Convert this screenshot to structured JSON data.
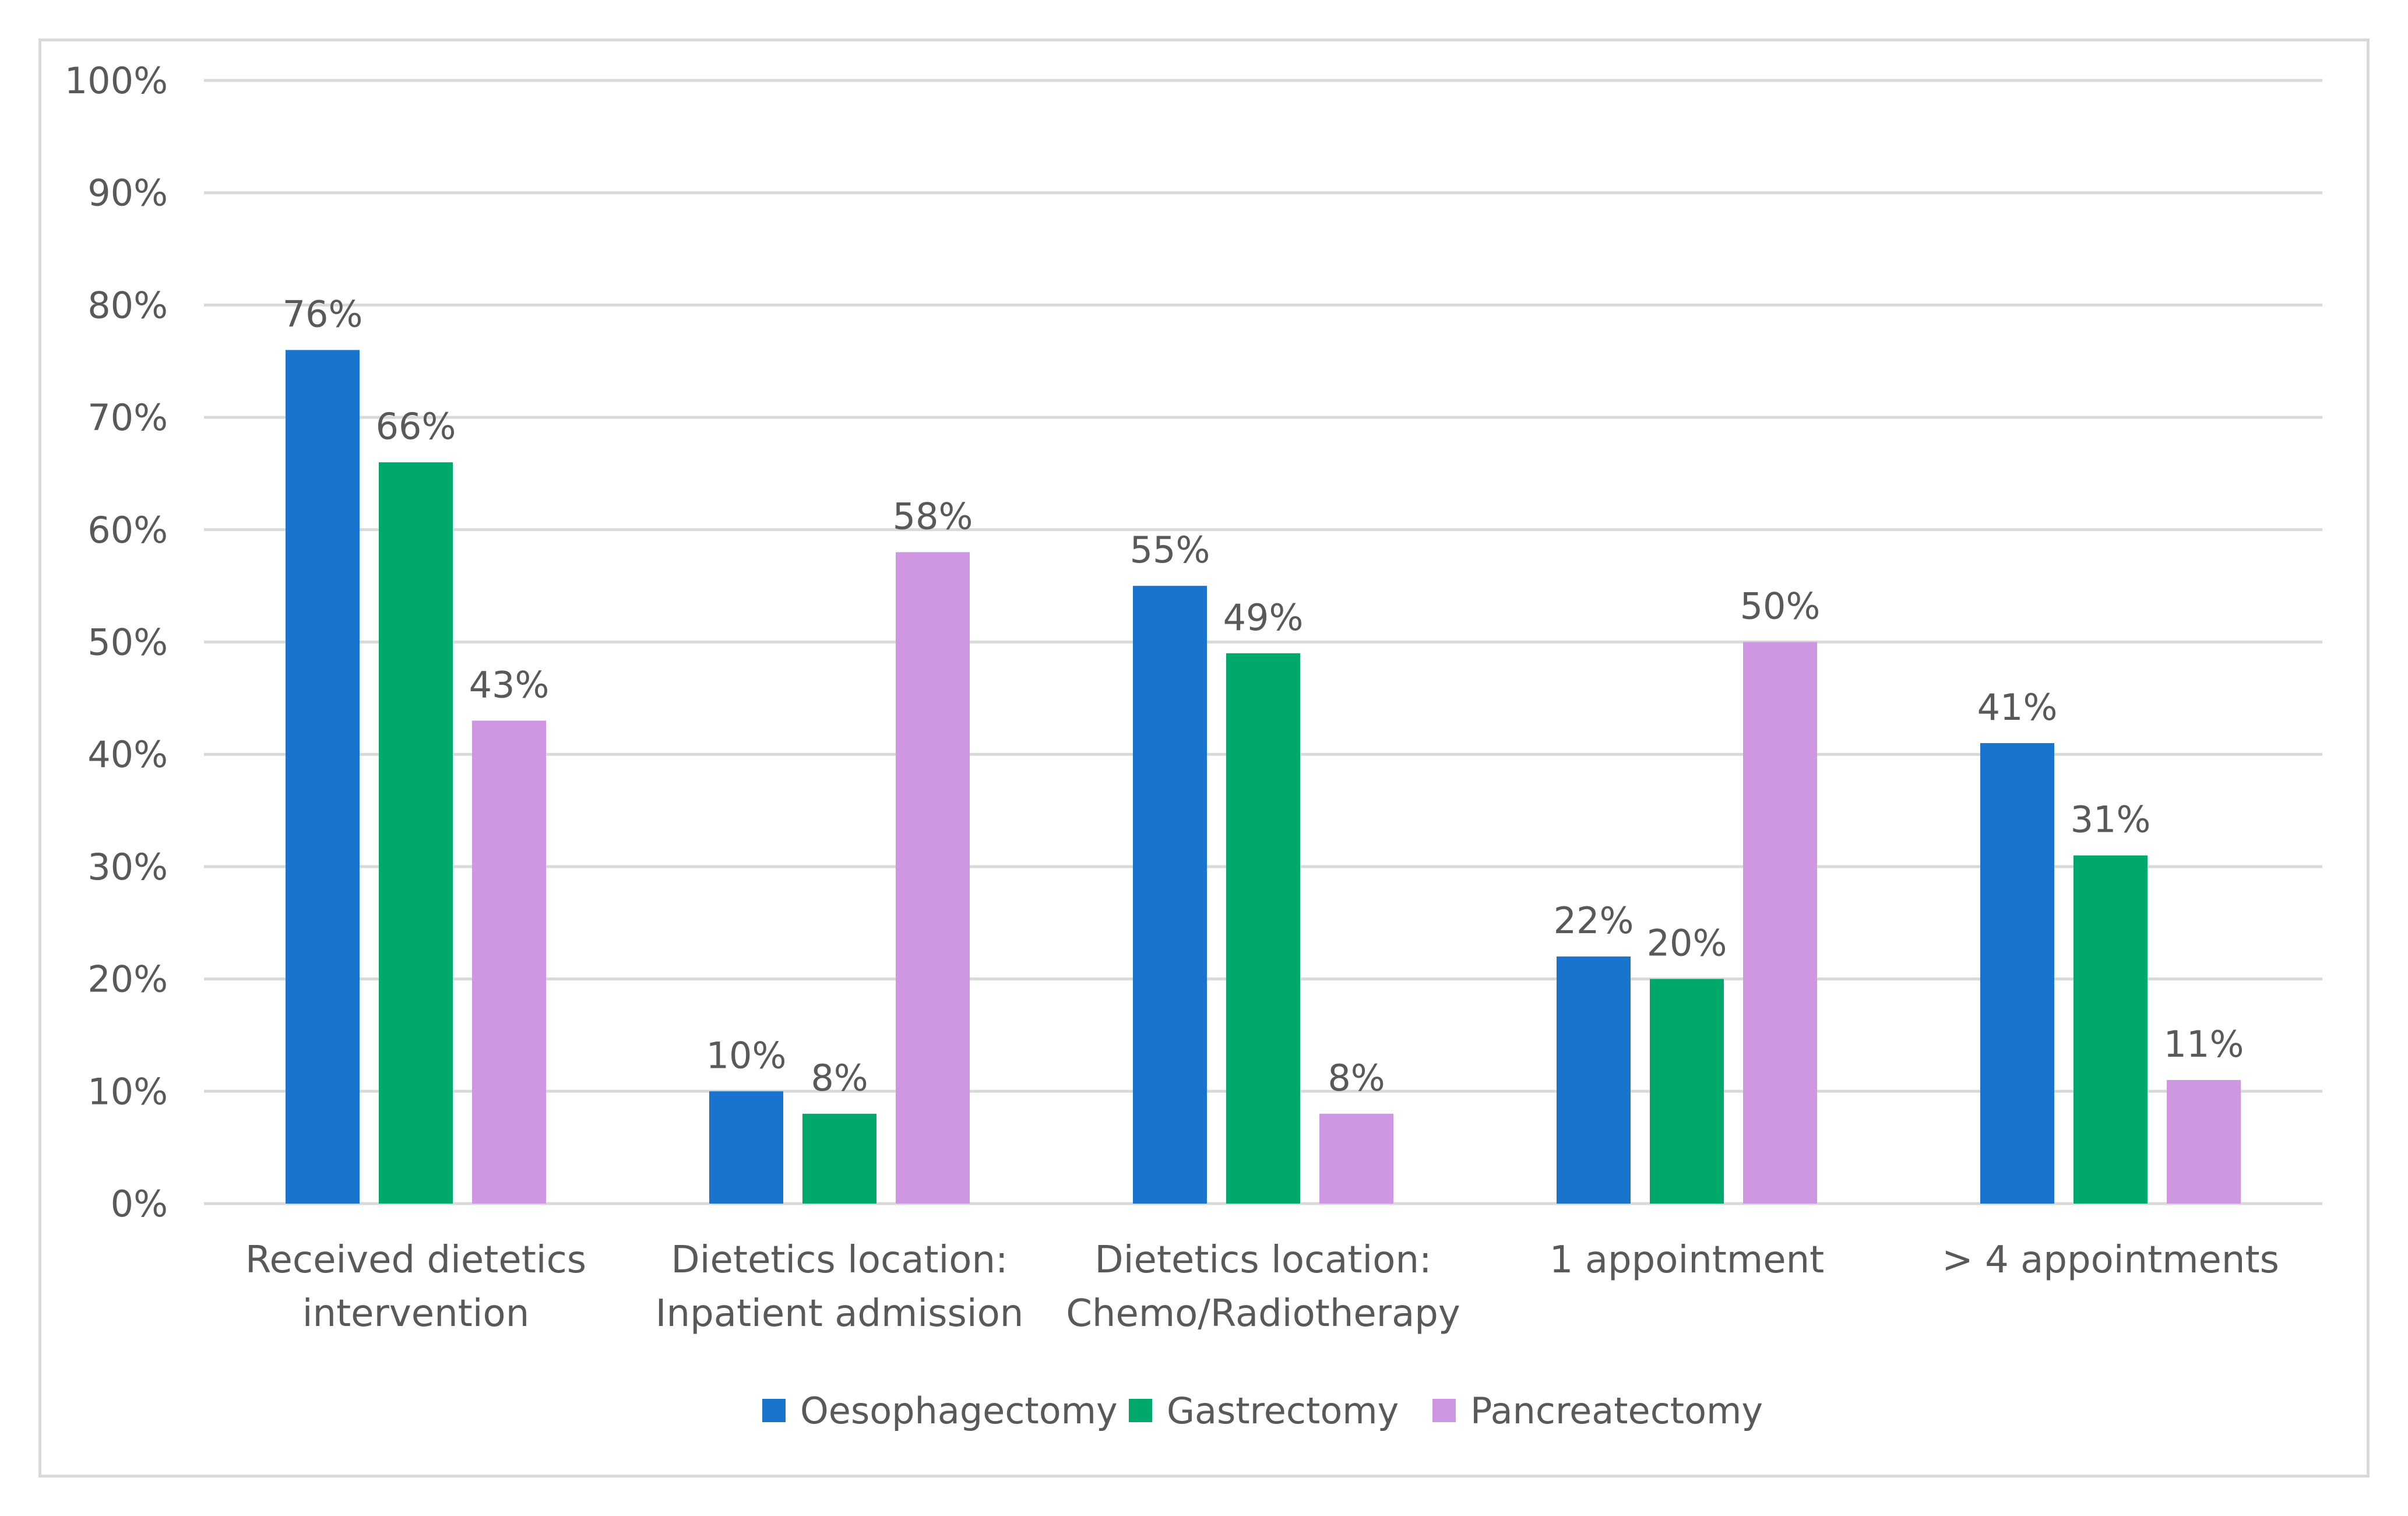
{
  "chart_data": {
    "type": "bar",
    "title": "",
    "xlabel": "",
    "ylabel": "",
    "categories": [
      [
        "Received dietetics",
        "intervention"
      ],
      [
        "Dietetics location:",
        "Inpatient admission"
      ],
      [
        "Dietetics location:",
        "Chemo/Radiotherapy"
      ],
      [
        "1 appointment"
      ],
      [
        "> 4 appointments"
      ]
    ],
    "series": [
      {
        "name": "Oesophagectomy",
        "color": "#1874cd",
        "values": [
          76,
          10,
          55,
          22,
          41
        ]
      },
      {
        "name": "Gastrectomy",
        "color": "#00a86b",
        "values": [
          66,
          8,
          49,
          20,
          31
        ]
      },
      {
        "name": "Pancreatectomy",
        "color": "#cf97e2",
        "values": [
          43,
          58,
          8,
          50,
          11
        ]
      }
    ],
    "ylim": [
      0,
      100
    ],
    "yticks": [
      0,
      10,
      20,
      30,
      40,
      50,
      60,
      70,
      80,
      90,
      100
    ],
    "value_suffix": "%",
    "data_labels": true,
    "grid": true,
    "legend_position": "bottom"
  }
}
